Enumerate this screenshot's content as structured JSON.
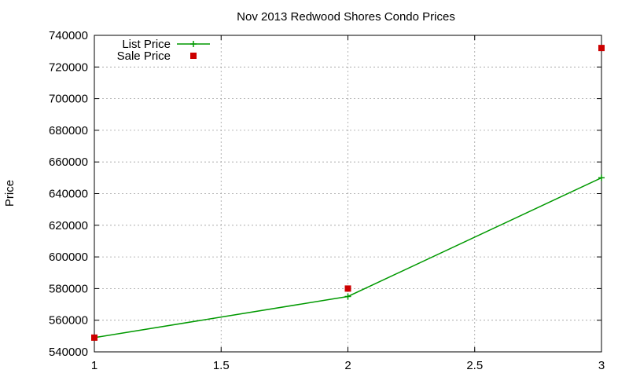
{
  "chart_data": {
    "type": "line",
    "title": "Nov 2013 Redwood Shores Condo Prices",
    "xlabel": "",
    "ylabel": "Price",
    "xlim": [
      1,
      3
    ],
    "ylim": [
      540000,
      740000
    ],
    "x_ticks": [
      "1",
      "1.5",
      "2",
      "2.5",
      "3"
    ],
    "x_tick_values": [
      1,
      1.5,
      2,
      2.5,
      3
    ],
    "y_ticks": [
      "540000",
      "560000",
      "580000",
      "600000",
      "620000",
      "640000",
      "660000",
      "680000",
      "700000",
      "720000",
      "740000"
    ],
    "y_tick_values": [
      540000,
      560000,
      580000,
      600000,
      620000,
      640000,
      660000,
      680000,
      700000,
      720000,
      740000
    ],
    "grid": true,
    "legend_position": "top-left",
    "series": [
      {
        "name": "List Price",
        "style": "linespoints",
        "color": "#009900",
        "x": [
          1,
          2,
          3
        ],
        "y": [
          549000,
          575000,
          650000
        ]
      },
      {
        "name": "Sale Price",
        "style": "points",
        "color": "#cc0000",
        "x": [
          1,
          2,
          3
        ],
        "y": [
          549000,
          580000,
          732000
        ]
      }
    ]
  }
}
